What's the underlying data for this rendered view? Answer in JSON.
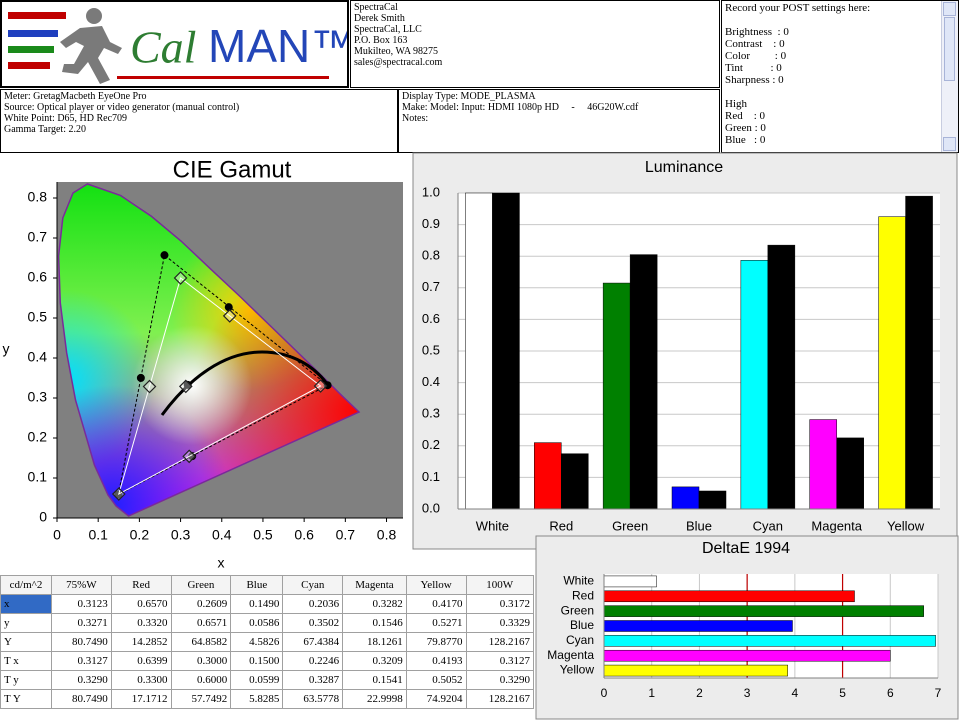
{
  "header": {
    "logo": {
      "part1": "Cal",
      "part2": "MAN™"
    },
    "contact": [
      "SpectraCal",
      "Derek Smith",
      "SpectraCal, LLC",
      "P.O. Box 163",
      "Mukilteo, WA 98275",
      "sales@spectracal.com"
    ],
    "post": {
      "title": "Record your POST settings here:",
      "settings": [
        "Brightness  : 0",
        "Contrast    : 0",
        "Color         : 0",
        "Tint          : 0",
        "Sharpness : 0"
      ],
      "high_title": "High",
      "high": [
        "Red    : 0",
        "Green : 0",
        "Blue   : 0"
      ]
    }
  },
  "info": {
    "meter": [
      "Meter: GretagMacbeth EyeOne Pro",
      "Source: Optical player or video generator (manual control)",
      "White Point: D65, HD Rec709",
      "Gamma Target: 2.20"
    ],
    "display": [
      "Display Type: MODE_PLASMA",
      "Make: Model: Input: HDMI 1080p HD     -     46G20W.cdf",
      "Notes:"
    ]
  },
  "chart_data": [
    {
      "type": "cie",
      "title": "CIE Gamut",
      "x_label": "x",
      "y_label": "y",
      "xlim": [
        0,
        0.84
      ],
      "ylim": [
        0,
        0.84
      ],
      "xticks": [
        0,
        0.1,
        0.2,
        0.3,
        0.4,
        0.5,
        0.6,
        0.7,
        0.8
      ],
      "yticks": [
        0,
        0.1,
        0.2,
        0.3,
        0.4,
        0.5,
        0.6,
        0.7,
        0.8
      ],
      "series": [
        {
          "marker": "circle",
          "color": "#000000",
          "x": [
            0.3172,
            0.657,
            0.2609,
            0.149,
            0.2036,
            0.3282,
            0.417
          ],
          "y": [
            0.3329,
            0.332,
            0.6571,
            0.0586,
            0.3502,
            0.1546,
            0.5271
          ]
        },
        {
          "marker": "diamond",
          "color": "#ffffff",
          "x": [
            0.3127,
            0.6399,
            0.3,
            0.15,
            0.2246,
            0.3209,
            0.4193
          ],
          "y": [
            0.329,
            0.33,
            0.6,
            0.0599,
            0.3287,
            0.1541,
            0.5052
          ]
        }
      ]
    },
    {
      "type": "bar",
      "title": "Luminance",
      "categories": [
        "White",
        "Red",
        "Green",
        "Blue",
        "Cyan",
        "Magenta",
        "Yellow"
      ],
      "ylim": [
        0,
        1
      ],
      "yticks": [
        {
          "value": 0,
          "label": "0.0"
        },
        0.1,
        0.2,
        0.3,
        0.4,
        0.5,
        0.6,
        0.7,
        0.8,
        0.9,
        {
          "value": 1,
          "label": "1.0"
        }
      ],
      "grid": true,
      "series": [
        {
          "colors": [
            "#ffffff",
            "#ff0000",
            "#008000",
            "#0000ff",
            "#00ffff",
            "#ff00ff",
            "#ffff00"
          ],
          "values": [
            1.0,
            0.21,
            0.715,
            0.07,
            0.787,
            0.283,
            0.925
          ]
        },
        {
          "color": "#000000",
          "values": [
            1.0,
            0.175,
            0.805,
            0.057,
            0.835,
            0.225,
            0.99
          ]
        }
      ]
    },
    {
      "type": "hbar",
      "title": "DeltaE 1994",
      "categories": [
        "White",
        "Red",
        "Green",
        "Blue",
        "Cyan",
        "Magenta",
        "Yellow"
      ],
      "values": [
        1.1,
        5.25,
        6.7,
        3.95,
        6.95,
        6.0,
        3.85
      ],
      "colors": [
        "#ffffff",
        "#ff0000",
        "#008000",
        "#0000ff",
        "#00ffff",
        "#ff00ff",
        "#ffff00"
      ],
      "xlim": [
        0,
        7
      ],
      "xticks": [
        0,
        1,
        2,
        3,
        4,
        5,
        6,
        7
      ],
      "grid": true,
      "reference_lines": [
        3,
        5
      ],
      "reference_color": "#c00000"
    }
  ],
  "table": {
    "header": [
      "cd/m^2",
      "75%W",
      "Red",
      "Green",
      "Blue",
      "Cyan",
      "Magenta",
      "Yellow",
      "100W"
    ],
    "rows": [
      [
        "x",
        "0.3123",
        "0.6570",
        "0.2609",
        "0.1490",
        "0.2036",
        "0.3282",
        "0.4170",
        "0.3172"
      ],
      [
        "y",
        "0.3271",
        "0.3320",
        "0.6571",
        "0.0586",
        "0.3502",
        "0.1546",
        "0.5271",
        "0.3329"
      ],
      [
        "Y",
        "80.7490",
        "14.2852",
        "64.8582",
        "4.5826",
        "67.4384",
        "18.1261",
        "79.8770",
        "128.2167"
      ],
      [
        "T x",
        "0.3127",
        "0.6399",
        "0.3000",
        "0.1500",
        "0.2246",
        "0.3209",
        "0.4193",
        "0.3127"
      ],
      [
        "T y",
        "0.3290",
        "0.3300",
        "0.6000",
        "0.0599",
        "0.3287",
        "0.1541",
        "0.5052",
        "0.3290"
      ],
      [
        "T Y",
        "80.7490",
        "17.1712",
        "57.7492",
        "5.8285",
        "63.5778",
        "22.9998",
        "74.9204",
        "128.2167"
      ]
    ]
  }
}
